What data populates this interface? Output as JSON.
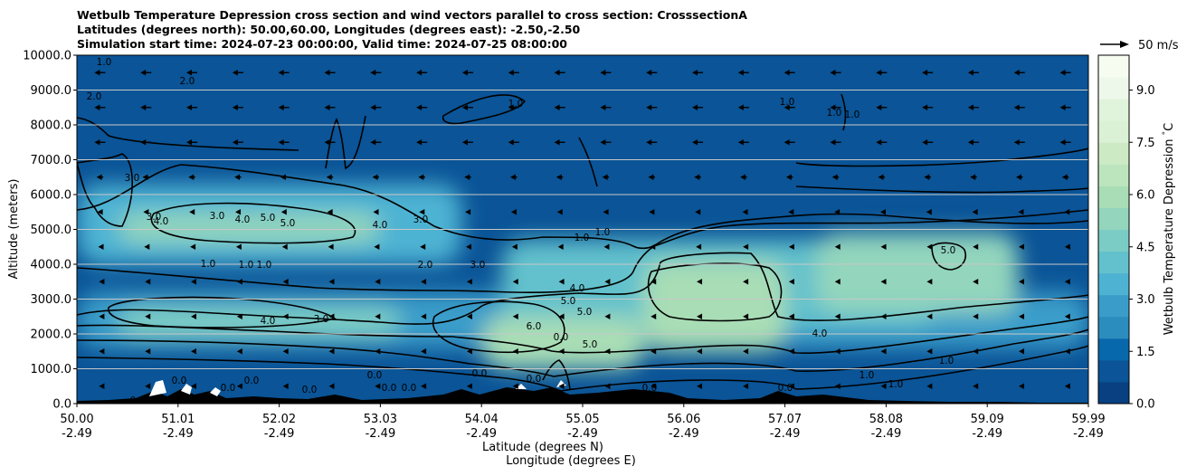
{
  "chart_data": {
    "type": "heatmap",
    "title_lines": [
      "Wetbulb Temperature Depression cross section and wind vectors parallel to cross section: CrosssectionA",
      "Latitudes (degrees north): 50.00,60.00, Longitudes (degrees east): -2.50,-2.50",
      "Simulation start time: 2024-07-23 00:00:00, Valid time: 2024-07-25 08:00:00"
    ],
    "xlabel": "Latitude (degrees N)",
    "xlabel2": "Longitude (degrees E)",
    "ylabel": "Altitude (meters)",
    "x_ticks": [
      {
        "lat": "50.00",
        "lon": "-2.49"
      },
      {
        "lat": "51.01",
        "lon": "-2.49"
      },
      {
        "lat": "52.02",
        "lon": "-2.49"
      },
      {
        "lat": "53.03",
        "lon": "-2.49"
      },
      {
        "lat": "54.04",
        "lon": "-2.49"
      },
      {
        "lat": "55.05",
        "lon": "-2.49"
      },
      {
        "lat": "56.06",
        "lon": "-2.49"
      },
      {
        "lat": "57.07",
        "lon": "-2.49"
      },
      {
        "lat": "58.08",
        "lon": "-2.49"
      },
      {
        "lat": "59.09",
        "lon": "-2.49"
      },
      {
        "lat": "59.99",
        "lon": "-2.49"
      }
    ],
    "xlim": [
      50.0,
      59.99
    ],
    "y_ticks": [
      "0.0",
      "1000.0",
      "2000.0",
      "3000.0",
      "4000.0",
      "5000.0",
      "6000.0",
      "7000.0",
      "8000.0",
      "9000.0",
      "10000.0"
    ],
    "ylim": [
      0,
      10000
    ],
    "grid": "horizontal",
    "colorbar": {
      "label": "Wetbulb Temperature Depression $^\\circ$C",
      "ticks": [
        "0.0",
        "1.5",
        "3.0",
        "4.5",
        "6.0",
        "7.5",
        "9.0"
      ],
      "range": [
        0,
        10
      ],
      "colormap": "GnBu_r",
      "colors": [
        "#084081",
        "#0a5497",
        "#0868ac",
        "#2b8cbe",
        "#3a9dc9",
        "#4eb3d3",
        "#62c1cc",
        "#7bccc4",
        "#93d5bd",
        "#a8ddb5",
        "#bce5be",
        "#ccebc5",
        "#dbf1d5",
        "#e0f3db",
        "#eef8ea",
        "#f7fcf0"
      ]
    },
    "wind_key": {
      "label": "50 m/s"
    },
    "contour_labels": [
      "1.0",
      "2.0",
      "3.0",
      "4.0",
      "5.0",
      "0.0",
      "6.0"
    ],
    "zones": [
      {
        "x0": 50.4,
        "x1": 53.0,
        "y0": 4600,
        "y1": 5500,
        "value": 5.5
      },
      {
        "x0": 50.4,
        "x1": 53.2,
        "y0": 1900,
        "y1": 2800,
        "value": 4.5
      },
      {
        "x0": 54.0,
        "x1": 55.6,
        "y0": 1000,
        "y1": 2500,
        "value": 6.0
      },
      {
        "x0": 55.6,
        "x1": 57.0,
        "y0": 1500,
        "y1": 4100,
        "value": 6.2
      },
      {
        "x0": 57.3,
        "x1": 59.3,
        "y0": 2600,
        "y1": 4900,
        "value": 5.2
      },
      {
        "x0": 54.2,
        "x1": 58.5,
        "y0": 2200,
        "y1": 4700,
        "value": 4.0
      },
      {
        "x0": 50.0,
        "x1": 60.0,
        "y0": 1600,
        "y1": 3200,
        "value": 2.8
      },
      {
        "x0": 50.0,
        "x1": 53.8,
        "y0": 4000,
        "y1": 6300,
        "value": 3.2
      }
    ],
    "wind": {
      "direction": "southward",
      "max_speed_ms": 20
    }
  }
}
